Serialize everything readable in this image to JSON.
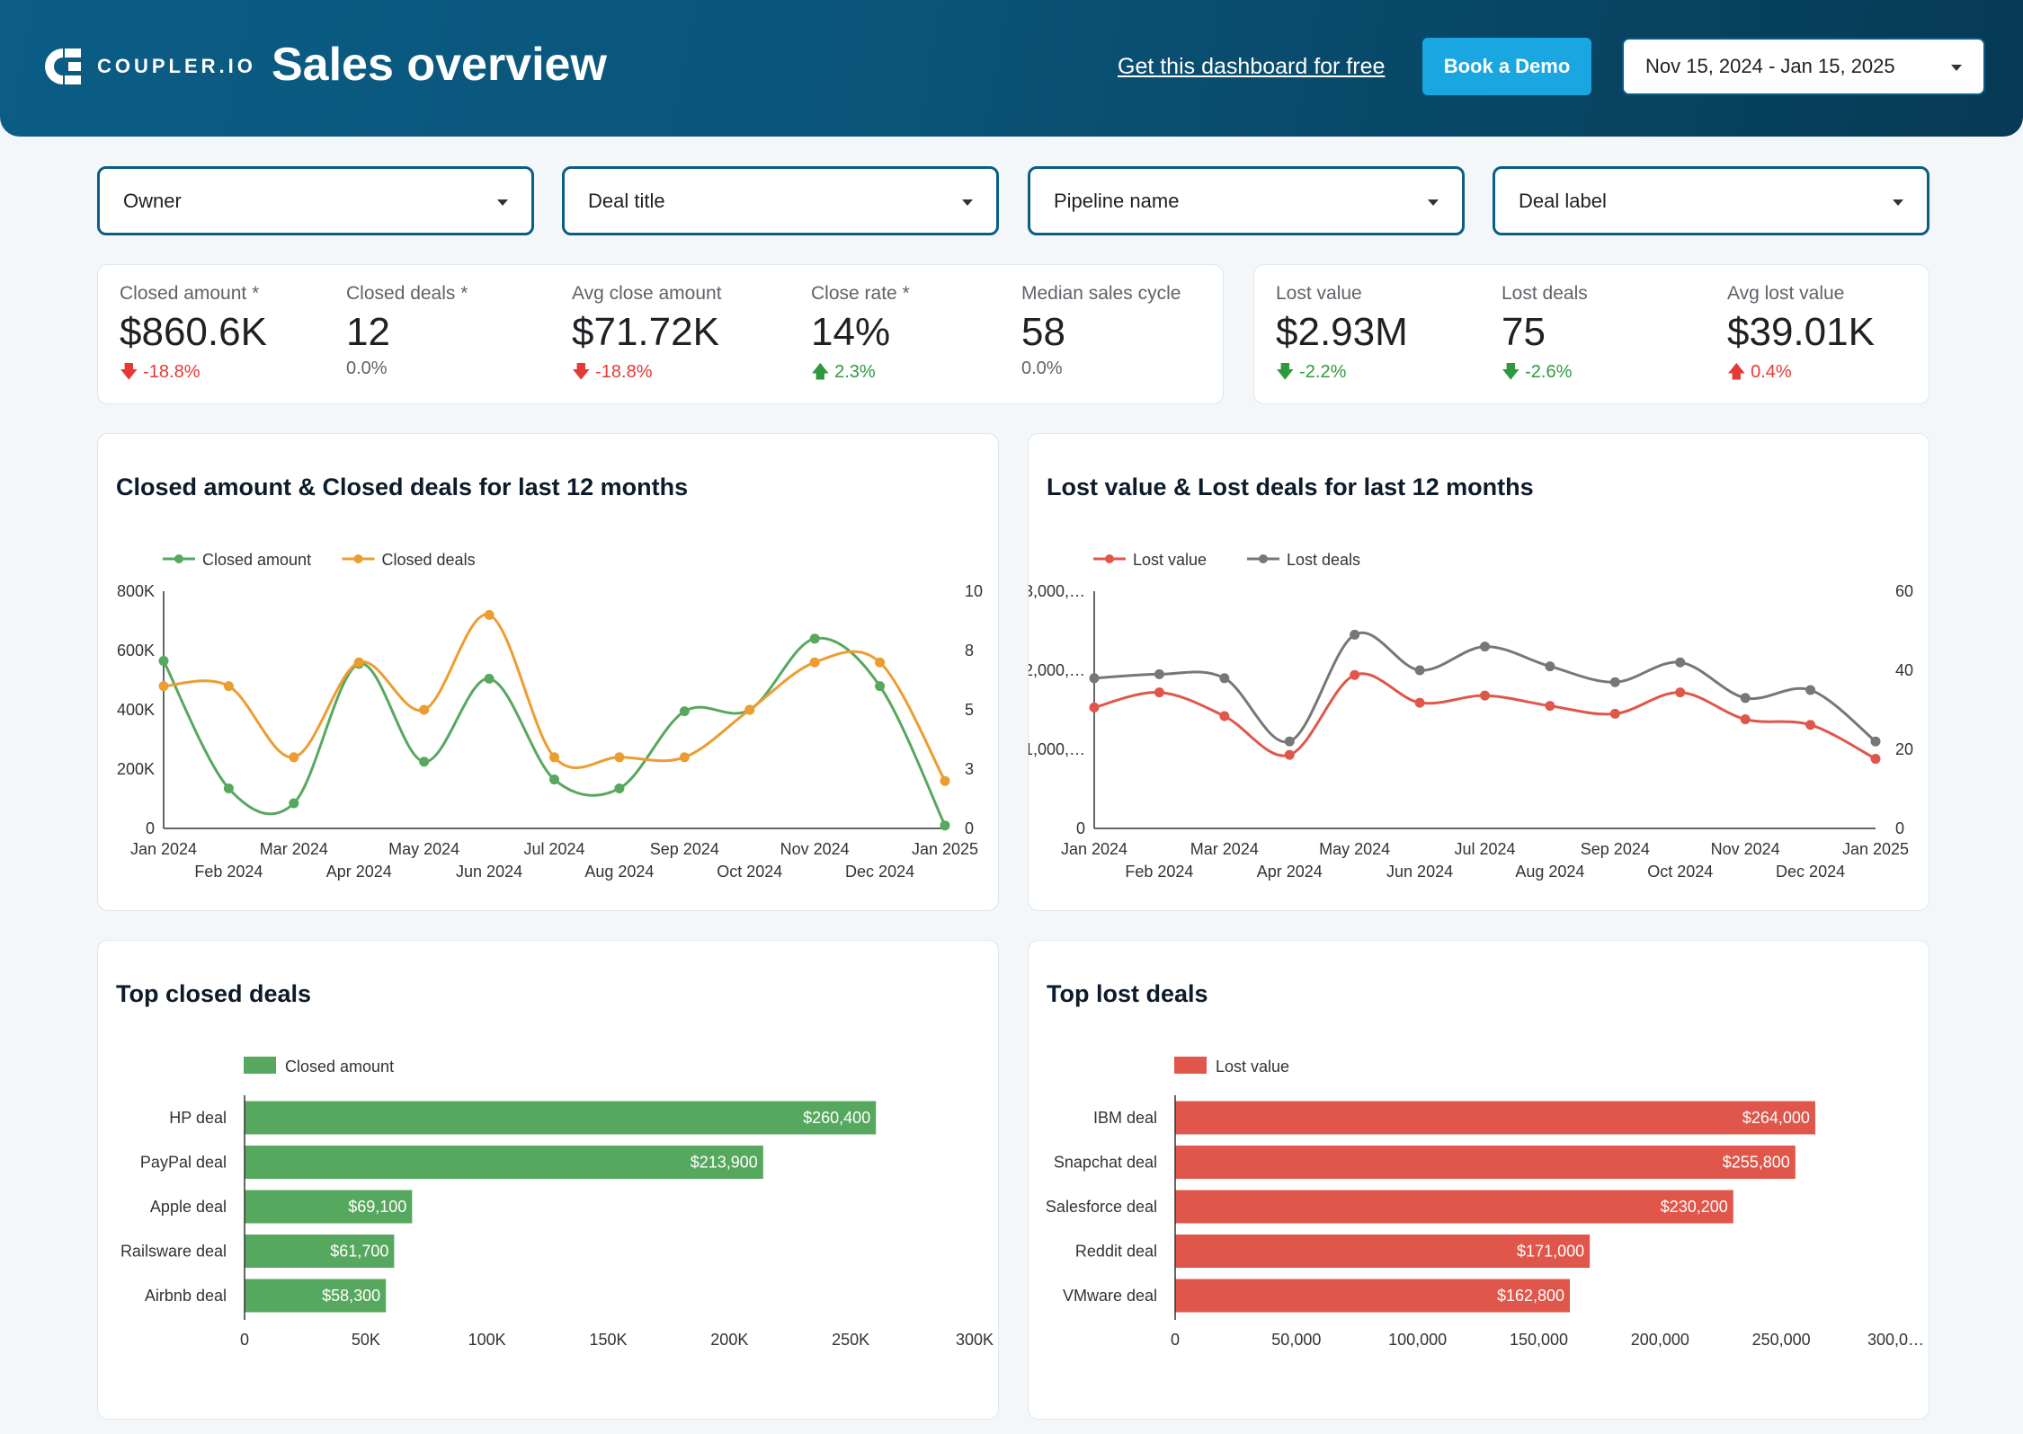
{
  "header": {
    "brand": "COUPLER.IO",
    "title": "Sales overview",
    "free_link": "Get this dashboard for free",
    "demo_button": "Book a Demo",
    "date_range": "Nov 15, 2024 - Jan 15, 2025"
  },
  "filters": [
    "Owner",
    "Deal title",
    "Pipeline name",
    "Deal label"
  ],
  "kpis_closed": [
    {
      "label": "Closed amount *",
      "value": "$860.6K",
      "delta": "-18.8%",
      "dir": "down-red"
    },
    {
      "label": "Closed deals *",
      "value": "12",
      "delta": "0.0%",
      "dir": "neutral"
    },
    {
      "label": "Avg close amount",
      "value": "$71.72K",
      "delta": "-18.8%",
      "dir": "down-red"
    },
    {
      "label": "Close rate *",
      "value": "14%",
      "delta": "2.3%",
      "dir": "up-green"
    },
    {
      "label": "Median sales cycle",
      "value": "58",
      "delta": "0.0%",
      "dir": "neutral"
    }
  ],
  "kpis_lost": [
    {
      "label": "Lost value",
      "value": "$2.93M",
      "delta": "-2.2%",
      "dir": "down-green"
    },
    {
      "label": "Lost deals",
      "value": "75",
      "delta": "-2.6%",
      "dir": "down-green"
    },
    {
      "label": "Avg lost value",
      "value": "$39.01K",
      "delta": "0.4%",
      "dir": "up-red"
    }
  ],
  "colors": {
    "green": "#57a85f",
    "orange": "#ec9d32",
    "red": "#e0564a",
    "gray": "#777777"
  },
  "chart_data": [
    {
      "type": "line",
      "title": "Closed amount & Closed deals for last 12 months",
      "x": [
        "Jan 2024",
        "Feb 2024",
        "Mar 2024",
        "Apr 2024",
        "May 2024",
        "Jun 2024",
        "Jul 2024",
        "Aug 2024",
        "Sep 2024",
        "Oct 2024",
        "Nov 2024",
        "Dec 2024",
        "Jan 2025"
      ],
      "left_ticks": [
        "0",
        "200K",
        "400K",
        "600K",
        "800K"
      ],
      "right_ticks": [
        "0",
        "3",
        "5",
        "8",
        "10"
      ],
      "ylim_left": [
        0,
        800000
      ],
      "ylim_right": [
        0,
        10
      ],
      "series": [
        {
          "name": "Closed amount",
          "axis": "left",
          "color": "#57a85f",
          "values": [
            565000,
            135000,
            85000,
            555000,
            225000,
            505000,
            165000,
            135000,
            395000,
            400000,
            640000,
            480000,
            10000
          ]
        },
        {
          "name": "Closed deals",
          "axis": "right",
          "color": "#ec9d32",
          "values": [
            6,
            6,
            3,
            7,
            5,
            9,
            3,
            3,
            3,
            5,
            7,
            7,
            2
          ]
        }
      ]
    },
    {
      "type": "line",
      "title": "Lost value & Lost deals for last 12 months",
      "x": [
        "Jan 2024",
        "Feb 2024",
        "Mar 2024",
        "Apr 2024",
        "May 2024",
        "Jun 2024",
        "Jul 2024",
        "Aug 2024",
        "Sep 2024",
        "Oct 2024",
        "Nov 2024",
        "Dec 2024",
        "Jan 2025"
      ],
      "left_ticks": [
        "0",
        "1,000,…",
        "2,000,…",
        "3,000,…"
      ],
      "right_ticks": [
        "0",
        "20",
        "40",
        "60"
      ],
      "ylim_left": [
        0,
        3000000
      ],
      "ylim_right": [
        0,
        60
      ],
      "series": [
        {
          "name": "Lost value",
          "axis": "left",
          "color": "#e0564a",
          "values": [
            1530000,
            1720000,
            1420000,
            930000,
            1940000,
            1590000,
            1680000,
            1550000,
            1450000,
            1720000,
            1380000,
            1310000,
            880000
          ]
        },
        {
          "name": "Lost deals",
          "axis": "right",
          "color": "#777777",
          "values": [
            38,
            39,
            38,
            22,
            49,
            40,
            46,
            41,
            37,
            42,
            33,
            35,
            22
          ]
        }
      ]
    },
    {
      "type": "bar",
      "title": "Top closed deals",
      "legend": "Closed amount",
      "color": "#57a85f",
      "categories": [
        "HP deal",
        "PayPal deal",
        "Apple deal",
        "Railsware deal",
        "Airbnb deal"
      ],
      "values": [
        260400,
        213900,
        69100,
        61700,
        58300
      ],
      "value_labels": [
        "$260,400",
        "$213,900",
        "$69,100",
        "$61,700",
        "$58,300"
      ],
      "xlim": [
        0,
        300000
      ],
      "ticks": [
        "0",
        "50K",
        "100K",
        "150K",
        "200K",
        "250K",
        "300K"
      ]
    },
    {
      "type": "bar",
      "title": "Top lost deals",
      "legend": "Lost value",
      "color": "#e0564a",
      "categories": [
        "IBM deal",
        "Snapchat deal",
        "Salesforce deal",
        "Reddit deal",
        "VMware deal"
      ],
      "values": [
        264000,
        255800,
        230200,
        171000,
        162800
      ],
      "value_labels": [
        "$264,000",
        "$255,800",
        "$230,200",
        "$171,000",
        "$162,800"
      ],
      "xlim": [
        0,
        300000
      ],
      "ticks": [
        "0",
        "50,000",
        "100,000",
        "150,000",
        "200,000",
        "250,000",
        "300,0…"
      ]
    }
  ]
}
